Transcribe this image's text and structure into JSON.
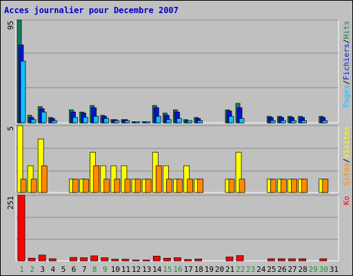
{
  "title": "Acces journalier pour Decembre 2007",
  "colors": {
    "hits": "#157f5c",
    "files": "#0015d6",
    "pages": "#10c0ff",
    "visits": "#ffff00",
    "sites": "#ff8a00",
    "ko": "#ff0000",
    "weekend_label": "#1d8f2e",
    "weekday_label": "#000000"
  },
  "chart_data": [
    {
      "type": "bar",
      "panel": "hits-files-pages",
      "ymax_label": "95",
      "legend_parts": [
        "Pages",
        "/",
        "Fichiers",
        "/",
        "Hits"
      ],
      "categories": [
        "1",
        "2",
        "3",
        "4",
        "5",
        "6",
        "7",
        "8",
        "9",
        "10",
        "11",
        "12",
        "13",
        "14",
        "15",
        "16",
        "17",
        "18",
        "19",
        "20",
        "21",
        "22",
        "23",
        "24",
        "25",
        "26",
        "27",
        "28",
        "29",
        "30",
        "31"
      ],
      "weekend_days": [
        1,
        2,
        8,
        9,
        15,
        16,
        22,
        23,
        29,
        30
      ],
      "series": [
        {
          "name": "Hits",
          "values": [
            95,
            7,
            15,
            5,
            0,
            12,
            10,
            16,
            7,
            3,
            3,
            1,
            1,
            16,
            9,
            12,
            3,
            5,
            0,
            0,
            12,
            18,
            0,
            0,
            6,
            6,
            6,
            6,
            0,
            6,
            0
          ]
        },
        {
          "name": "Fichiers",
          "values": [
            72,
            5,
            13,
            4,
            0,
            10,
            9,
            14,
            6,
            3,
            3,
            1,
            1,
            14,
            7,
            10,
            2,
            4,
            0,
            0,
            11,
            14,
            0,
            0,
            5,
            5,
            5,
            5,
            0,
            5,
            0
          ]
        },
        {
          "name": "Pages",
          "values": [
            57,
            3,
            10,
            2,
            0,
            5,
            5,
            6,
            4,
            2,
            2,
            1,
            1,
            6,
            3,
            4,
            2,
            2,
            0,
            0,
            6,
            4,
            0,
            0,
            2,
            2,
            2,
            2,
            0,
            2,
            0
          ]
        }
      ]
    },
    {
      "type": "bar",
      "panel": "visits-sites",
      "ymax_label": "5",
      "legend_parts": [
        "Sites",
        "/",
        "Visites"
      ],
      "categories": [
        "1",
        "2",
        "3",
        "4",
        "5",
        "6",
        "7",
        "8",
        "9",
        "10",
        "11",
        "12",
        "13",
        "14",
        "15",
        "16",
        "17",
        "18",
        "19",
        "20",
        "21",
        "22",
        "23",
        "24",
        "25",
        "26",
        "27",
        "28",
        "29",
        "30",
        "31"
      ],
      "series": [
        {
          "name": "Visites",
          "values": [
            5,
            2,
            4,
            0,
            0,
            1,
            1,
            3,
            2,
            2,
            2,
            1,
            1,
            3,
            2,
            1,
            2,
            1,
            0,
            0,
            1,
            3,
            0,
            0,
            1,
            1,
            1,
            1,
            0,
            1,
            0
          ]
        },
        {
          "name": "Sites",
          "values": [
            1,
            1,
            2,
            0,
            0,
            1,
            1,
            2,
            1,
            1,
            1,
            1,
            1,
            2,
            1,
            1,
            1,
            1,
            0,
            0,
            1,
            1,
            0,
            0,
            1,
            1,
            1,
            1,
            0,
            1,
            0
          ]
        }
      ]
    },
    {
      "type": "bar",
      "panel": "ko",
      "ymax_label": "251",
      "legend_parts": [
        "Ko"
      ],
      "categories": [
        "1",
        "2",
        "3",
        "4",
        "5",
        "6",
        "7",
        "8",
        "9",
        "10",
        "11",
        "12",
        "13",
        "14",
        "15",
        "16",
        "17",
        "18",
        "19",
        "20",
        "21",
        "22",
        "23",
        "24",
        "25",
        "26",
        "27",
        "28",
        "29",
        "30",
        "31"
      ],
      "series": [
        {
          "name": "Ko",
          "values": [
            251,
            10,
            22,
            8,
            0,
            13,
            12,
            19,
            12,
            6,
            6,
            3,
            3,
            18,
            10,
            12,
            5,
            7,
            0,
            0,
            15,
            20,
            0,
            0,
            8,
            8,
            8,
            8,
            0,
            8,
            0
          ]
        }
      ]
    }
  ]
}
